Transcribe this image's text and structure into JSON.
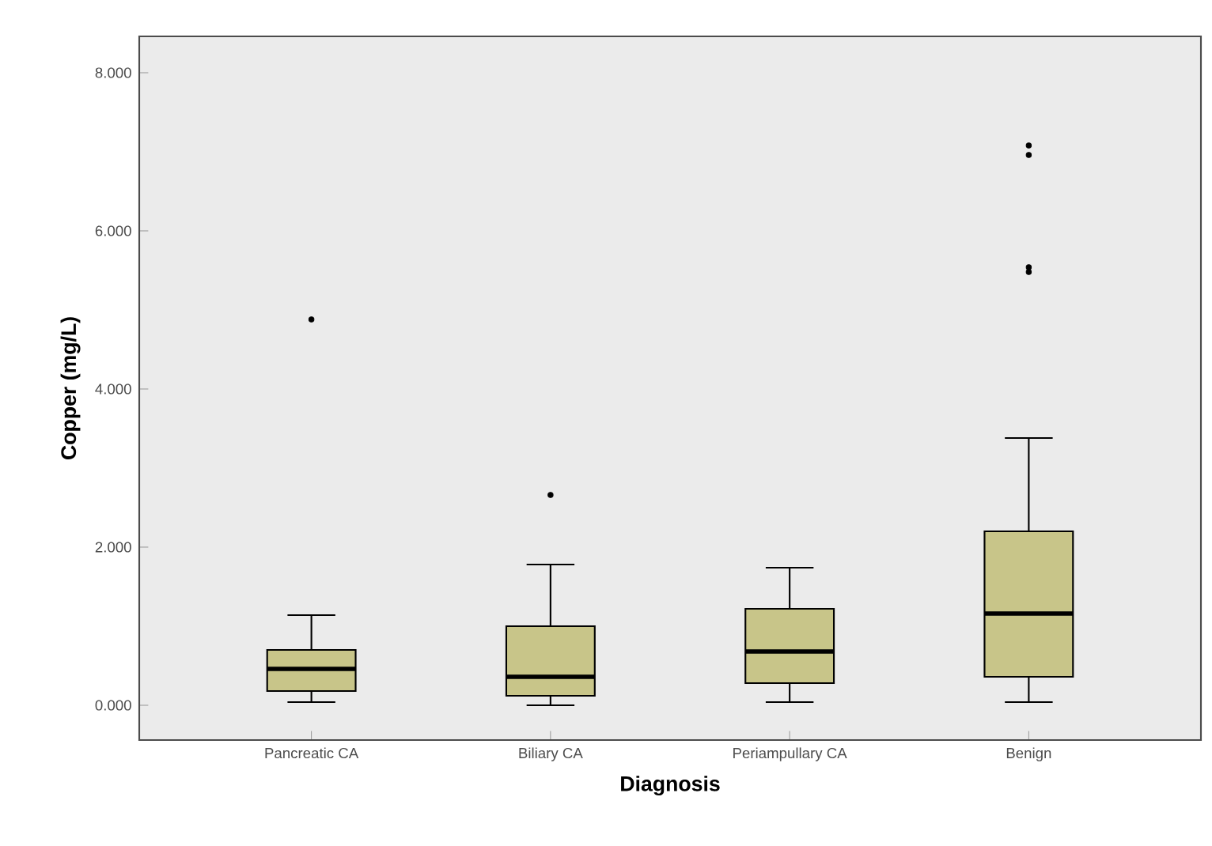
{
  "chart_data": {
    "type": "box",
    "xlabel": "Diagnosis",
    "ylabel": "Copper (mg/L)",
    "categories": [
      "Pancreatic CA",
      "Biliary CA",
      "Periampullary CA",
      "Benign"
    ],
    "color": "#c8c589",
    "boxes": [
      {
        "low": 0.04,
        "q1": 0.18,
        "median": 0.46,
        "q3": 0.7,
        "high": 1.14,
        "outliers": [
          4.88
        ]
      },
      {
        "low": 0.0,
        "q1": 0.12,
        "median": 0.36,
        "q3": 1.0,
        "high": 1.78,
        "outliers": [
          2.66
        ]
      },
      {
        "low": 0.04,
        "q1": 0.28,
        "median": 0.68,
        "q3": 1.22,
        "high": 1.74
      },
      {
        "low": 0.04,
        "q1": 0.36,
        "median": 1.16,
        "q3": 2.2,
        "high": 3.38,
        "outliers": [
          7.08,
          6.96,
          5.54,
          5.48
        ]
      }
    ],
    "ylim": [
      -0.44,
      8.46
    ],
    "yticks": [
      {
        "value": 0,
        "label": "0.000"
      },
      {
        "value": 2,
        "label": "2.000"
      },
      {
        "value": 4,
        "label": "4.000"
      },
      {
        "value": 6,
        "label": "6.000"
      },
      {
        "value": 8,
        "label": "8.000"
      }
    ]
  }
}
